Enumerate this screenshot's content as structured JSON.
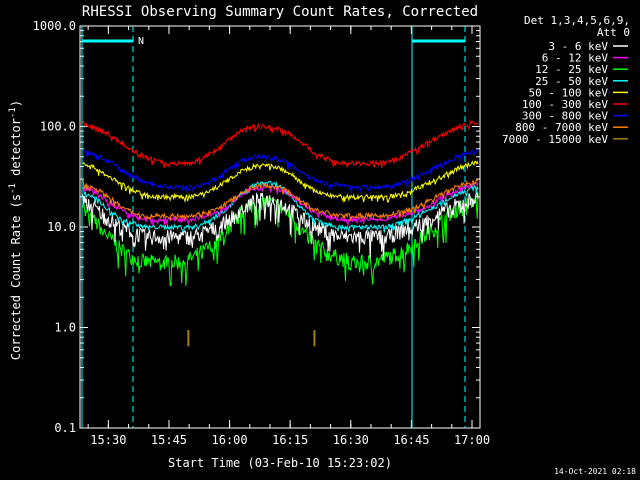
{
  "chart_data": {
    "type": "line",
    "title": "RHESSI Observing Summary Count Rates, Corrected",
    "xlabel": "Start Time (03-Feb-10 15:23:02)",
    "ylabel": "Corrected Count Rate (s⁻¹ detector⁻¹)",
    "ylabel_parts": [
      "Corrected Count Rate (s",
      "-1",
      " detector",
      "-1",
      ")"
    ],
    "y_scale": "log",
    "ylim": [
      0.1,
      1000.0
    ],
    "xlim_minutes": [
      15.383,
      17.033
    ],
    "x_ticks": [
      "15:30",
      "15:45",
      "16:00",
      "16:15",
      "16:30",
      "16:45",
      "17:00"
    ],
    "x_tick_hours": [
      15.5,
      15.75,
      16.0,
      16.25,
      16.5,
      16.75,
      17.0
    ],
    "y_ticks": [
      "0.1",
      "1.0",
      "10.0",
      "100.0",
      "1000.0"
    ],
    "y_tick_values": [
      0.1,
      1,
      10,
      100,
      1000
    ],
    "legend_header": [
      "Det 1,3,4,5,6,9,",
      "Att 0"
    ],
    "legend_placement": "right",
    "grid": false,
    "x_hours": [
      15.4,
      15.45,
      15.5,
      15.55,
      15.6,
      15.65,
      15.7,
      15.75,
      15.8,
      15.85,
      15.9,
      15.95,
      16.0,
      16.05,
      16.1,
      16.15,
      16.2,
      16.25,
      16.3,
      16.35,
      16.4,
      16.45,
      16.5,
      16.55,
      16.6,
      16.65,
      16.7,
      16.75,
      16.8,
      16.85,
      16.9,
      16.95,
      17.0,
      17.02
    ],
    "series": [
      {
        "name": "3 - 6 keV",
        "color": "#ffffff",
        "values": [
          18,
          15,
          12,
          10,
          9,
          8,
          8,
          8,
          8,
          8,
          9,
          10,
          12,
          15,
          18,
          19,
          18,
          15,
          12,
          10,
          9,
          8,
          8,
          8,
          8,
          8,
          9,
          10,
          11,
          13,
          15,
          17,
          19,
          20
        ]
      },
      {
        "name": "6 - 12 keV",
        "color": "#ff00ff",
        "values": [
          25,
          22,
          18,
          15,
          13,
          12,
          12,
          12,
          12,
          12,
          13,
          14,
          17,
          21,
          24,
          25,
          24,
          21,
          17,
          14,
          13,
          12,
          12,
          12,
          12,
          12,
          13,
          14,
          15,
          18,
          21,
          24,
          26,
          27
        ]
      },
      {
        "name": "12 - 25 keV",
        "color": "#00ff00",
        "values": [
          14,
          11,
          8,
          6,
          5,
          4.5,
          4.5,
          4.5,
          4.5,
          5,
          6,
          7,
          10,
          14,
          17,
          18,
          16,
          13,
          9,
          7,
          5.5,
          5,
          4.5,
          4.5,
          4.5,
          5,
          5.5,
          6.5,
          8,
          10,
          13,
          16,
          18,
          19
        ]
      },
      {
        "name": "25 - 50 keV",
        "color": "#00ffff",
        "values": [
          22,
          19,
          15,
          12,
          11,
          10,
          10,
          10,
          10,
          10,
          11,
          13,
          16,
          21,
          26,
          28,
          26,
          21,
          15,
          12,
          11,
          10,
          10,
          10,
          10,
          10,
          11,
          12,
          14,
          16,
          19,
          22,
          24,
          25
        ]
      },
      {
        "name": "50 - 100 keV",
        "color": "#ffff00",
        "values": [
          43,
          38,
          32,
          27,
          23,
          21,
          20,
          20,
          20,
          20,
          22,
          25,
          30,
          36,
          40,
          41,
          39,
          34,
          27,
          23,
          21,
          20,
          20,
          20,
          20,
          20,
          21,
          23,
          26,
          30,
          34,
          39,
          43,
          44
        ]
      },
      {
        "name": "100 - 300 keV",
        "color": "#ff0000",
        "values": [
          106,
          98,
          84,
          70,
          58,
          50,
          45,
          43,
          43,
          44,
          50,
          60,
          76,
          92,
          100,
          100,
          96,
          84,
          68,
          55,
          48,
          44,
          43,
          43,
          43,
          44,
          48,
          56,
          65,
          76,
          88,
          100,
          108,
          110
        ]
      },
      {
        "name": "300 - 800 keV",
        "color": "#0000ff",
        "values": [
          56,
          52,
          45,
          38,
          32,
          28,
          26,
          25,
          25,
          25,
          27,
          31,
          38,
          46,
          50,
          50,
          48,
          42,
          35,
          30,
          27,
          26,
          25,
          25,
          25,
          25,
          27,
          30,
          34,
          39,
          45,
          52,
          57,
          58
        ]
      },
      {
        "name": "800 - 7000 keV",
        "color": "#ff8000",
        "values": [
          27,
          24,
          20,
          16,
          14,
          13,
          13,
          13,
          13,
          13,
          14,
          15,
          18,
          22,
          25,
          26,
          25,
          22,
          18,
          15,
          14,
          13,
          13,
          13,
          13,
          13,
          14,
          15,
          17,
          20,
          23,
          26,
          28,
          29
        ]
      },
      {
        "name": "7000 - 15000 keV",
        "color": "#a08000",
        "values": [
          null,
          null,
          null,
          null,
          null,
          null,
          null,
          null,
          null,
          null,
          null,
          null,
          null,
          null,
          null,
          null,
          null,
          null,
          null,
          null,
          null,
          null,
          null,
          null,
          null,
          null,
          null,
          null,
          null,
          null,
          null,
          null,
          null,
          null
        ],
        "spikes": [
          {
            "x": 15.83,
            "y": 0.65
          },
          {
            "x": 16.35,
            "y": 0.65
          }
        ]
      }
    ],
    "annotations": [
      {
        "text": "N",
        "color": "#00ffff"
      }
    ],
    "footer_date": "14-Oct-2021 02:18"
  }
}
